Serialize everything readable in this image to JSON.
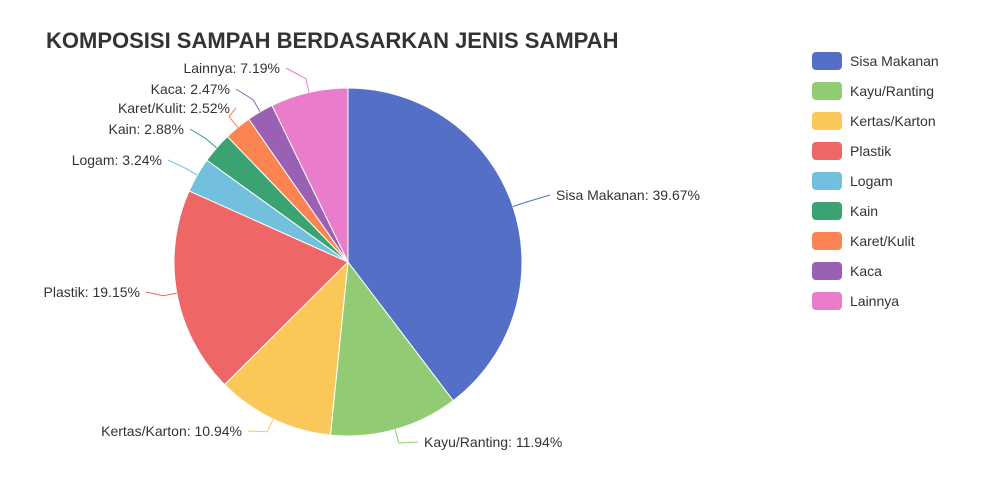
{
  "chart_data": {
    "type": "pie",
    "title": "KOMPOSISI SAMPAH BERDASARKAN JENIS SAMPAH",
    "slices": [
      {
        "name": "Sisa Makanan",
        "value": 39.67,
        "label": "Sisa Makanan: 39.67%",
        "color": "#5470c6"
      },
      {
        "name": "Kayu/Ranting",
        "value": 11.94,
        "label": "Kayu/Ranting: 11.94%",
        "color": "#91cc75"
      },
      {
        "name": "Kertas/Karton",
        "value": 10.94,
        "label": "Kertas/Karton: 10.94%",
        "color": "#fac858"
      },
      {
        "name": "Plastik",
        "value": 19.15,
        "label": "Plastik: 19.15%",
        "color": "#ee6666"
      },
      {
        "name": "Logam",
        "value": 3.24,
        "label": "Logam: 3.24%",
        "color": "#73c0de"
      },
      {
        "name": "Kain",
        "value": 2.88,
        "label": "Kain: 2.88%",
        "color": "#3ba272"
      },
      {
        "name": "Karet/Kulit",
        "value": 2.52,
        "label": "Karet/Kulit: 2.52%",
        "color": "#fc8452"
      },
      {
        "name": "Kaca",
        "value": 2.47,
        "label": "Kaca: 2.47%",
        "color": "#9a60b4"
      },
      {
        "name": "Lainnya",
        "value": 7.19,
        "label": "Lainnya: 7.19%",
        "color": "#ea7ccc"
      }
    ],
    "legend_position": "top-right"
  }
}
